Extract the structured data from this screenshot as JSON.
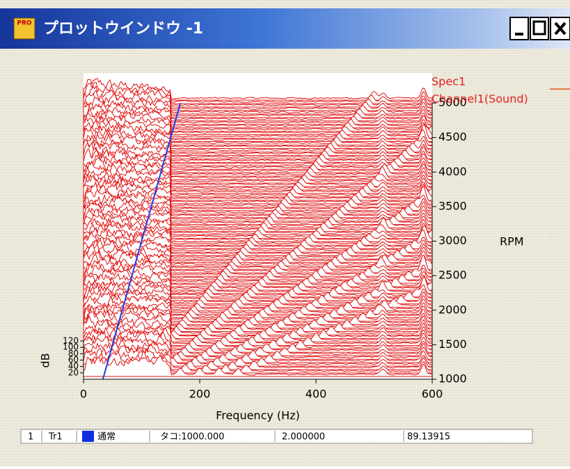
{
  "window": {
    "title": "プロットウインドウ -1",
    "icon_text": "PRO"
  },
  "chart_data": {
    "type": "waterfall",
    "legend": [
      "Spec1",
      "Channel1(Sound)"
    ],
    "xlabel": "Frequency (Hz)",
    "xlim": [
      0,
      600
    ],
    "xticks": [
      0,
      200,
      400,
      600
    ],
    "y2label": "RPM",
    "y2lim": [
      1000,
      5000
    ],
    "y2ticks": [
      1000,
      1500,
      2000,
      2500,
      3000,
      3500,
      4000,
      4500,
      5000
    ],
    "zlabel": "dB",
    "zlim": [
      0,
      120
    ],
    "zticks": [
      20,
      40,
      60,
      80,
      100,
      120
    ],
    "series": [
      {
        "color": "#1a3ee0",
        "x": [
          33.3,
          166.7
        ],
        "values": [
          1000,
          5000
        ],
        "axis": "y2"
      }
    ]
  },
  "status_bar": {
    "cells": [
      "1",
      "Tr1",
      "通常",
      "タコ:1000.000",
      "2.000000",
      "89.13915"
    ]
  }
}
